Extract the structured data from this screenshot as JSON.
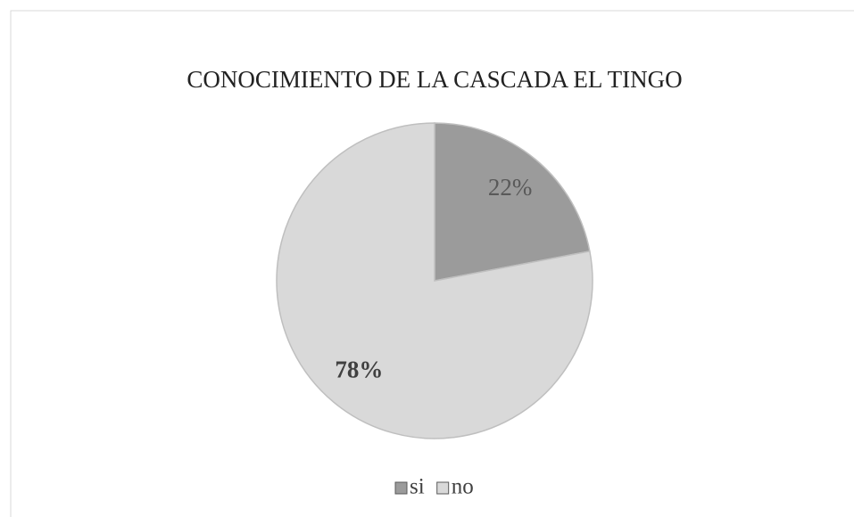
{
  "chart_data": {
    "type": "pie",
    "title": "CONOCIMIENTO DE LA CASCADA EL TINGO",
    "categories": [
      "si",
      "no"
    ],
    "values": [
      22,
      78
    ],
    "value_labels": [
      "22%",
      "78%"
    ],
    "colors": [
      "#9b9b9b",
      "#d9d9d9"
    ],
    "legend": "bottom"
  }
}
